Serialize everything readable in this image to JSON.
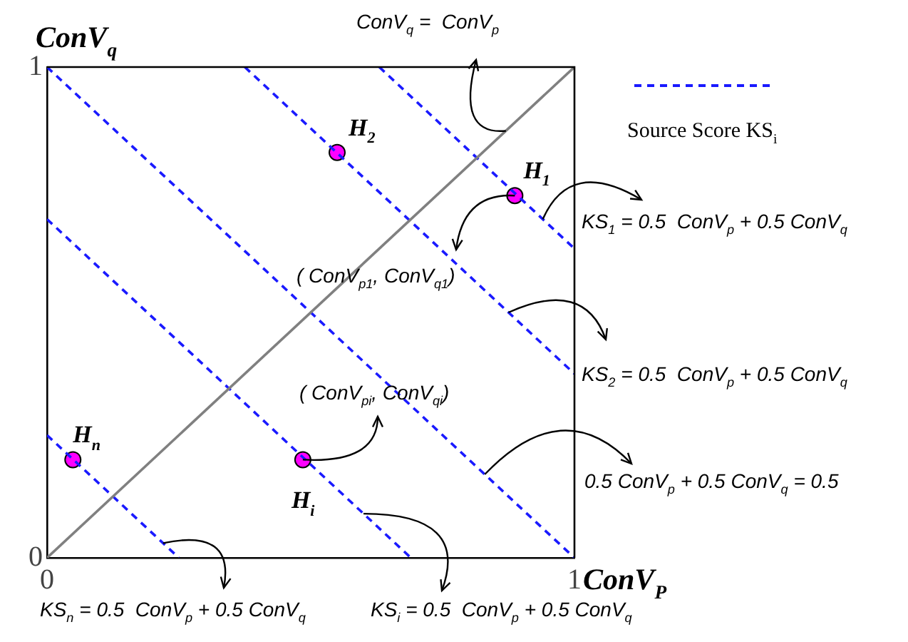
{
  "chart_data": {
    "type": "line",
    "xlabel": "ConV$_{P}$",
    "ylabel": "ConV$_{q}$",
    "xlim": [
      0,
      1
    ],
    "ylim": [
      0,
      1
    ],
    "xticks": [
      0,
      1
    ],
    "yticks": [
      0,
      1
    ],
    "legend": "top right",
    "series": [
      {
        "color": "#808080",
        "line_style": "solid",
        "marker": "none",
        "x": [
          0,
          1
        ],
        "values": [
          0,
          1
        ]
      },
      {
        "name": "Source Score KS$_{i}$",
        "color": "#1a1aff",
        "line_style": "dashed",
        "marker": "none",
        "x": [
          0,
          0.25
        ],
        "values": [
          0.25,
          0
        ]
      },
      {
        "color": "#1a1aff",
        "line_style": "dashed",
        "marker": "none",
        "x": [
          0,
          0.69
        ],
        "values": [
          0.69,
          0
        ]
      },
      {
        "color": "#1a1aff",
        "line_style": "dashed",
        "marker": "none",
        "x": [
          0,
          1
        ],
        "values": [
          1,
          0
        ]
      },
      {
        "color": "#1a1aff",
        "line_style": "dashed",
        "marker": "none",
        "x": [
          0.375,
          1
        ],
        "values": [
          1,
          0.375
        ]
      },
      {
        "color": "#1a1aff",
        "line_style": "dashed",
        "marker": "none",
        "x": [
          0.63,
          1
        ],
        "values": [
          1,
          0.63
        ]
      },
      {
        "type": "scatter",
        "color": "#ff00ff",
        "marker": "circle",
        "x": [
          0.55,
          0.887,
          0.485,
          0.049
        ],
        "values": [
          0.826,
          0.738,
          0.2,
          0.2
        ]
      }
    ],
    "annotations": [
      {
        "text": "H$_{2}$",
        "x": 0.55,
        "y": 0.826
      },
      {
        "text": "H$_{1}$",
        "x": 0.887,
        "y": 0.738
      },
      {
        "text": "H$_{i}$",
        "x": 0.485,
        "y": 0.2
      },
      {
        "text": "H$_{n}$",
        "x": 0.049,
        "y": 0.2
      },
      {
        "text": "ConV$_{q}$ =  ConV$_{p}$",
        "x": 0.87,
        "y": 0.87
      },
      {
        "text": "KS$_{1}$ = 0.5  ConV$_{p}$ + 0.5 ConV$_{q}$",
        "x": 0.94,
        "y": 0.69
      },
      {
        "text": "( ConV$_{p1}$, ConV$_{q1}$)",
        "x": 0.887,
        "y": 0.738
      },
      {
        "text": "KS$_{2}$ = 0.5  ConV$_{p}$ + 0.5 ConV$_{q}$",
        "x": 0.875,
        "y": 0.5
      },
      {
        "text": "( ConV$_{pi}$, ConV$_{qi}$)",
        "x": 0.485,
        "y": 0.2
      },
      {
        "text": "0.5 ConV$_{p}$ + 0.5 ConV$_{q}$ = 0.5",
        "x": 0.83,
        "y": 0.17
      },
      {
        "text": "KS$_{n}$ = 0.5  ConV$_{p}$ + 0.5 ConV$_{q}$",
        "x": 0.22,
        "y": 0.03
      },
      {
        "text": "KS$_{i}$ = 0.5  ConV$_{p}$ + 0.5 ConV$_{q}$",
        "x": 0.6,
        "y": 0.09
      }
    ]
  }
}
